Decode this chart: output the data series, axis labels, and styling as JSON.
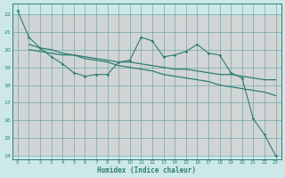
{
  "xlabel": "Humidex (Indice chaleur)",
  "x": [
    0,
    1,
    2,
    3,
    4,
    5,
    6,
    7,
    8,
    9,
    10,
    11,
    12,
    13,
    14,
    15,
    16,
    17,
    18,
    19,
    20,
    21,
    22,
    23
  ],
  "line_data": [
    22.2,
    20.7,
    20.1,
    19.6,
    19.2,
    18.7,
    18.5,
    18.6,
    18.6,
    19.3,
    19.4,
    20.7,
    20.5,
    19.6,
    19.7,
    19.9,
    20.3,
    19.8,
    19.7,
    18.7,
    18.4,
    16.1,
    15.2,
    14.0
  ],
  "trend1": [
    20.1,
    20.0,
    19.9,
    19.8,
    19.7,
    19.7,
    19.6,
    19.5,
    19.4,
    19.3,
    19.3,
    19.2,
    19.1,
    19.0,
    18.9,
    18.9,
    18.8,
    18.7,
    18.6,
    18.6,
    18.5,
    18.4,
    18.3,
    18.3
  ],
  "trend2": [
    20.5,
    20.3,
    20.1,
    20.0,
    19.8,
    19.7,
    19.5,
    19.4,
    19.3,
    19.1,
    19.0,
    18.9,
    18.8,
    18.6,
    18.5,
    18.4,
    18.3,
    18.2,
    18.0,
    17.9,
    17.8,
    17.7,
    17.6,
    17.4
  ],
  "color": "#2e7d72",
  "bg_color": "#cce8e8",
  "grid_major_color": "#c8b8b8",
  "grid_minor_color": "#b8d8d8",
  "ylim": [
    13.8,
    22.6
  ],
  "yticks": [
    14,
    15,
    16,
    17,
    18,
    19,
    20,
    21,
    22
  ],
  "xlim": [
    -0.5,
    23.5
  ]
}
